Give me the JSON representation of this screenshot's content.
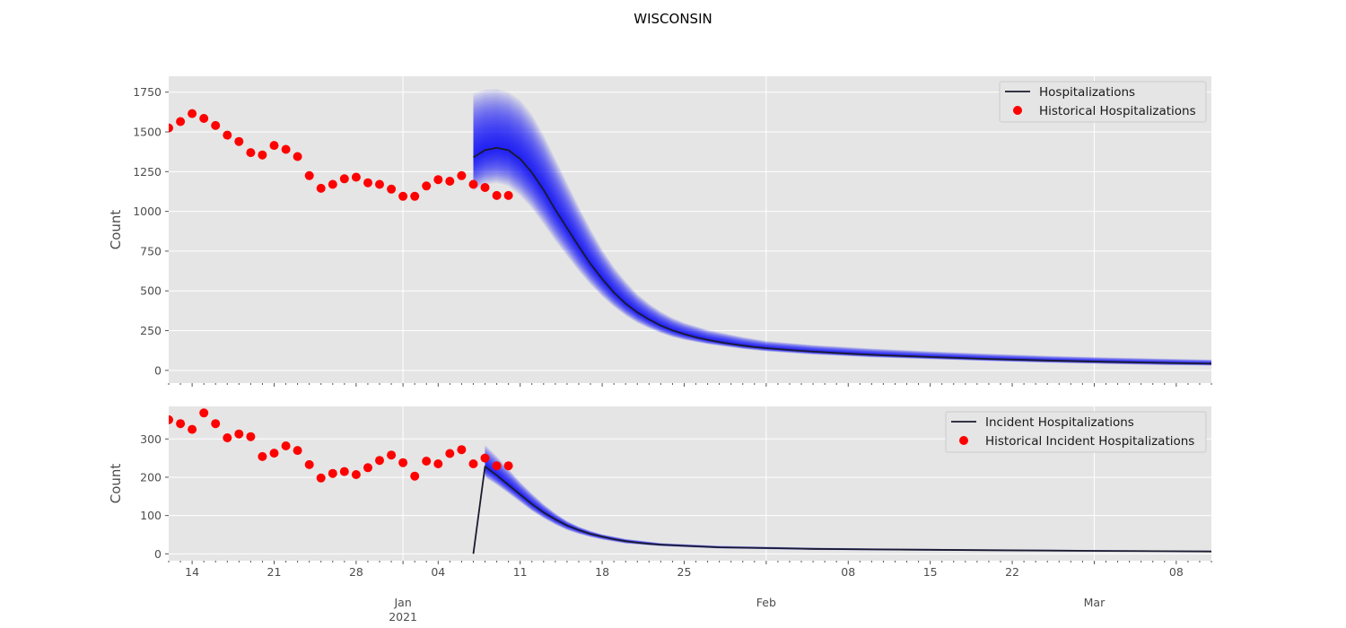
{
  "chart_data": {
    "title": "WISCONSIN",
    "type": "line",
    "x_axis": {
      "range": [
        "2020-12-12",
        "2021-03-11"
      ],
      "major_ticks": [
        {
          "date": "2020-12-14",
          "label": "14"
        },
        {
          "date": "2020-12-21",
          "label": "21"
        },
        {
          "date": "2020-12-28",
          "label": "28"
        },
        {
          "date": "2021-01-04",
          "label": "04"
        },
        {
          "date": "2021-01-11",
          "label": "11"
        },
        {
          "date": "2021-01-18",
          "label": "18"
        },
        {
          "date": "2021-01-25",
          "label": "25"
        },
        {
          "date": "2021-02-08",
          "label": "08"
        },
        {
          "date": "2021-02-15",
          "label": "15"
        },
        {
          "date": "2021-02-22",
          "label": "22"
        },
        {
          "date": "2021-03-08",
          "label": "08"
        }
      ],
      "month_labels": [
        {
          "date": "2021-01-01",
          "label": "Jan",
          "sublabel": "2021"
        },
        {
          "date": "2021-02-01",
          "label": "Feb",
          "sublabel": ""
        },
        {
          "date": "2021-03-01",
          "label": "Mar",
          "sublabel": ""
        }
      ]
    },
    "panels": [
      {
        "ylabel": "Count",
        "ylim": [
          -80,
          1850
        ],
        "yticks": [
          0,
          250,
          500,
          750,
          1000,
          1250,
          1500,
          1750
        ],
        "legend_position": "upper right",
        "series": [
          {
            "name": "Hospitalizations",
            "kind": "line",
            "color": "#1a1a2e",
            "x": [
              "2021-01-07",
              "2021-01-08",
              "2021-01-09",
              "2021-01-10",
              "2021-01-11",
              "2021-01-12",
              "2021-01-13",
              "2021-01-14",
              "2021-01-15",
              "2021-01-16",
              "2021-01-17",
              "2021-01-18",
              "2021-01-19",
              "2021-01-20",
              "2021-01-21",
              "2021-01-22",
              "2021-01-23",
              "2021-01-24",
              "2021-01-25",
              "2021-01-26",
              "2021-01-27",
              "2021-01-28",
              "2021-01-29",
              "2021-01-30",
              "2021-01-31",
              "2021-02-01",
              "2021-02-03",
              "2021-02-05",
              "2021-02-08",
              "2021-02-11",
              "2021-02-15",
              "2021-02-20",
              "2021-02-25",
              "2021-03-02",
              "2021-03-07",
              "2021-03-11"
            ],
            "y": [
              1340,
              1385,
              1400,
              1385,
              1330,
              1245,
              1135,
              1010,
              895,
              780,
              670,
              575,
              490,
              420,
              365,
              320,
              282,
              252,
              228,
              208,
              192,
              178,
              166,
              156,
              147,
              140,
              128,
              118,
              105,
              95,
              84,
              72,
              62,
              54,
              47,
              42
            ]
          },
          {
            "name": "Historical Hospitalizations",
            "kind": "scatter",
            "color": "#ff0000",
            "x": [
              "2020-12-12",
              "2020-12-13",
              "2020-12-14",
              "2020-12-15",
              "2020-12-16",
              "2020-12-17",
              "2020-12-18",
              "2020-12-19",
              "2020-12-20",
              "2020-12-21",
              "2020-12-22",
              "2020-12-23",
              "2020-12-24",
              "2020-12-25",
              "2020-12-26",
              "2020-12-27",
              "2020-12-28",
              "2020-12-29",
              "2020-12-30",
              "2020-12-31",
              "2021-01-01",
              "2021-01-02",
              "2021-01-03",
              "2021-01-04",
              "2021-01-05",
              "2021-01-06",
              "2021-01-07",
              "2021-01-08",
              "2021-01-09",
              "2021-01-10"
            ],
            "y": [
              1525,
              1565,
              1615,
              1585,
              1540,
              1480,
              1440,
              1370,
              1355,
              1415,
              1390,
              1345,
              1225,
              1145,
              1170,
              1205,
              1215,
              1180,
              1170,
              1140,
              1095,
              1095,
              1160,
              1200,
              1190,
              1225,
              1170,
              1150,
              1100,
              1100
            ]
          }
        ],
        "uncertainty_band": {
          "color": "#0000ff",
          "x": [
            "2021-01-07",
            "2021-01-08",
            "2021-01-09",
            "2021-01-10",
            "2021-01-11",
            "2021-01-12",
            "2021-01-13",
            "2021-01-14",
            "2021-01-15",
            "2021-01-16",
            "2021-01-17",
            "2021-01-18",
            "2021-01-19",
            "2021-01-20",
            "2021-01-21",
            "2021-01-22",
            "2021-01-23",
            "2021-01-24",
            "2021-01-25",
            "2021-01-27",
            "2021-01-30",
            "2021-02-01",
            "2021-02-05",
            "2021-02-10",
            "2021-02-15",
            "2021-02-20",
            "2021-02-25",
            "2021-03-02",
            "2021-03-07",
            "2021-03-11"
          ],
          "low": [
            1130,
            1170,
            1180,
            1160,
            1100,
            1020,
            920,
            815,
            720,
            625,
            540,
            465,
            400,
            345,
            300,
            265,
            235,
            210,
            192,
            165,
            135,
            120,
            100,
            82,
            70,
            58,
            48,
            40,
            33,
            30
          ],
          "high": [
            1740,
            1765,
            1770,
            1750,
            1700,
            1610,
            1480,
            1330,
            1180,
            1030,
            890,
            760,
            650,
            560,
            480,
            420,
            370,
            330,
            300,
            255,
            210,
            185,
            160,
            138,
            120,
            105,
            92,
            82,
            74,
            68
          ]
        }
      },
      {
        "ylabel": "Count",
        "ylim": [
          -18,
          385
        ],
        "yticks": [
          0,
          100,
          200,
          300
        ],
        "legend_position": "upper right",
        "series": [
          {
            "name": "Incident Hospitalizations",
            "kind": "line",
            "color": "#1a1a2e",
            "x": [
              "2021-01-07",
              "2021-01-08",
              "2021-01-09",
              "2021-01-10",
              "2021-01-11",
              "2021-01-12",
              "2021-01-13",
              "2021-01-14",
              "2021-01-15",
              "2021-01-16",
              "2021-01-17",
              "2021-01-18",
              "2021-01-19",
              "2021-01-20",
              "2021-01-21",
              "2021-01-22",
              "2021-01-23",
              "2021-01-25",
              "2021-01-28",
              "2021-02-01",
              "2021-02-05",
              "2021-02-10",
              "2021-02-15",
              "2021-02-20",
              "2021-02-25",
              "2021-03-02",
              "2021-03-07",
              "2021-03-11"
            ],
            "y": [
              0,
              228,
              205,
              180,
              155,
              130,
              108,
              90,
              74,
              62,
              52,
              45,
              38,
              33,
              29,
              26,
              24,
              21,
              17,
              15,
              13,
              11.5,
              10.5,
              9.5,
              8.5,
              7.5,
              6.8,
              6.2
            ]
          },
          {
            "name": "Historical Incident Hospitalizations",
            "kind": "scatter",
            "color": "#ff0000",
            "x": [
              "2020-12-12",
              "2020-12-13",
              "2020-12-14",
              "2020-12-15",
              "2020-12-16",
              "2020-12-17",
              "2020-12-18",
              "2020-12-19",
              "2020-12-20",
              "2020-12-21",
              "2020-12-22",
              "2020-12-23",
              "2020-12-24",
              "2020-12-25",
              "2020-12-26",
              "2020-12-27",
              "2020-12-28",
              "2020-12-29",
              "2020-12-30",
              "2020-12-31",
              "2021-01-01",
              "2021-01-02",
              "2021-01-03",
              "2021-01-04",
              "2021-01-05",
              "2021-01-06",
              "2021-01-07",
              "2021-01-08",
              "2021-01-09",
              "2021-01-10"
            ],
            "y": [
              350,
              340,
              325,
              368,
              340,
              303,
              313,
              306,
              254,
              263,
              282,
              270,
              233,
              198,
              210,
              215,
              207,
              225,
              244,
              258,
              238,
              203,
              242,
              235,
              262,
              272,
              235,
              250,
              230,
              230
            ]
          }
        ],
        "uncertainty_band": {
          "color": "#0000ff",
          "x": [
            "2021-01-08",
            "2021-01-09",
            "2021-01-10",
            "2021-01-11",
            "2021-01-12",
            "2021-01-13",
            "2021-01-14",
            "2021-01-15",
            "2021-01-16",
            "2021-01-17",
            "2021-01-18",
            "2021-01-20",
            "2021-01-23",
            "2021-01-28",
            "2021-02-05",
            "2021-02-15",
            "2021-02-25",
            "2021-03-07",
            "2021-03-11"
          ],
          "low": [
            200,
            180,
            158,
            135,
            112,
            93,
            76,
            62,
            52,
            44,
            37,
            27,
            20,
            14,
            10,
            8,
            6.5,
            5,
            4.5
          ],
          "high": [
            285,
            255,
            222,
            188,
            158,
            130,
            106,
            86,
            71,
            60,
            51,
            39,
            28,
            21,
            16,
            13,
            11,
            9,
            8.5
          ]
        }
      }
    ]
  }
}
